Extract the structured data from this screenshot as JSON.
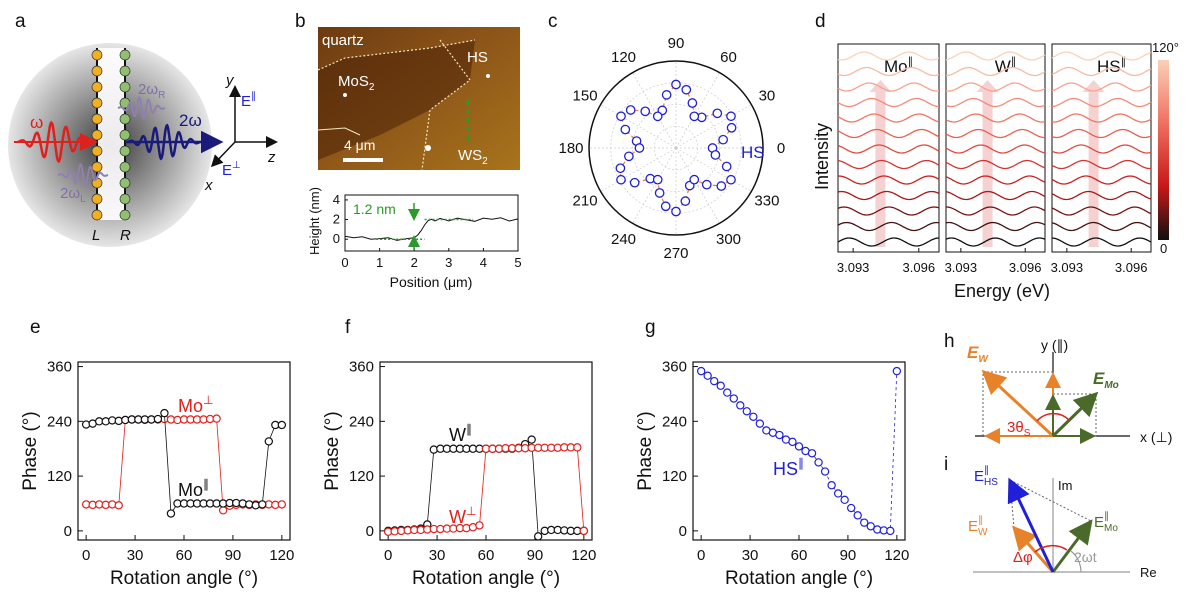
{
  "panels": {
    "a": {
      "letter": "a",
      "omega": "ω",
      "two_omega": "2ω",
      "omega_r": "2ω",
      "omega_r_sub": "R",
      "omega_l": "2ω",
      "omega_l_sub": "L",
      "layer_left": "L",
      "layer_right": "R",
      "axis_y": "y",
      "axis_z": "z",
      "axis_x": "x",
      "e_par": "E",
      "e_par_sup": "∥",
      "e_perp": "E",
      "e_perp_sup": "⊥"
    },
    "b": {
      "letter": "b",
      "quartz": "quartz",
      "mos2": "MoS",
      "mos2_sub": "2",
      "hs": "HS",
      "ws2": "WS",
      "ws2_sub": "2",
      "scale": "4 μm",
      "annotation": "1.2 nm",
      "ylabel": "Height (nm)",
      "xlabel": "Position (μm)",
      "xticks": [
        "0",
        "1",
        "2",
        "3",
        "4",
        "5"
      ],
      "yticks": [
        "0",
        "2",
        "4"
      ]
    },
    "c": {
      "letter": "c",
      "label": "HS",
      "angle_labels": [
        "0",
        "30",
        "60",
        "90",
        "120",
        "150",
        "180",
        "210",
        "240",
        "270",
        "300",
        "330"
      ]
    },
    "d": {
      "letter": "d",
      "titles": [
        "Mo",
        "W",
        "HS"
      ],
      "title_sup": "∥",
      "ylabel": "Intensity",
      "xlabel": "Energy (eV)",
      "xticks": [
        "3.093",
        "3.096"
      ],
      "colorbar_top": "120°",
      "colorbar_bottom": "0"
    },
    "h": {
      "letter": "h",
      "ew": "E",
      "ew_sub": "W",
      "emo": "E",
      "emo_sub": "Mo",
      "yaxis": "y (∥)",
      "xaxis": "x (⊥)",
      "angle": "3θ",
      "angle_sub": "S"
    },
    "i": {
      "letter": "i",
      "ehs": "E",
      "ehs_sub": "HS",
      "ew": "E",
      "ew_sub": "W",
      "emo": "E",
      "emo_sub": "Mo",
      "sup": "∥",
      "im": "Im",
      "re": "Re",
      "dphi": "Δφ",
      "wt": "2ωt"
    }
  },
  "colors": {
    "red": "#e0201c",
    "black": "#111111",
    "blue": "#2020d8",
    "orange": "#e8822a",
    "green": "#4a6a2a",
    "navy": "#1a1a7a",
    "afm_green": "#2a9a2a"
  },
  "chart_data": [
    {
      "type": "scatter",
      "id": "c",
      "title": "",
      "series": [
        {
          "name": "HS",
          "theta_deg": [
            0,
            10,
            20,
            30,
            40,
            50,
            60,
            70,
            80,
            90,
            100,
            110,
            120,
            130,
            140,
            150,
            160,
            170,
            180,
            190,
            200,
            210,
            220,
            230,
            240,
            250,
            260,
            270,
            280,
            290,
            300,
            310,
            320,
            330,
            340,
            350
          ],
          "r": [
            0.42,
            0.55,
            0.68,
            0.73,
            0.62,
            0.46,
            0.42,
            0.55,
            0.68,
            0.73,
            0.62,
            0.46,
            0.42,
            0.55,
            0.68,
            0.73,
            0.62,
            0.46,
            0.42,
            0.55,
            0.68,
            0.73,
            0.62,
            0.46,
            0.42,
            0.55,
            0.68,
            0.73,
            0.62,
            0.46,
            0.42,
            0.55,
            0.68,
            0.73,
            0.62,
            0.46
          ]
        }
      ]
    },
    {
      "type": "line",
      "id": "b",
      "xlabel": "Position (μm)",
      "ylabel": "Height (nm)",
      "xlim": [
        0,
        5
      ],
      "ylim": [
        -1.2,
        4.5
      ],
      "x": [
        0.0,
        0.25,
        0.5,
        0.75,
        1.0,
        1.25,
        1.5,
        1.75,
        2.0,
        2.1,
        2.2,
        2.3,
        2.4,
        2.5,
        2.6,
        2.75,
        3.0,
        3.25,
        3.5,
        3.75,
        4.0,
        4.25,
        4.5,
        4.75,
        5.0
      ],
      "y": [
        0.3,
        0.1,
        0.2,
        0.0,
        0.1,
        0.2,
        -0.1,
        0.0,
        0.1,
        0.4,
        0.9,
        1.5,
        1.9,
        2.0,
        1.8,
        2.1,
        1.9,
        2.2,
        2.0,
        1.8,
        2.1,
        2.0,
        2.2,
        1.9,
        2.1
      ]
    },
    {
      "type": "scatter",
      "id": "e",
      "xlabel": "Rotation angle (°)",
      "ylabel": "Phase (°)",
      "xlim": [
        -5,
        125
      ],
      "ylim": [
        -20,
        370
      ],
      "xticks": [
        0,
        30,
        60,
        90,
        120
      ],
      "yticks": [
        0,
        120,
        240,
        360
      ],
      "series_labels": [
        "Mo",
        "Mo"
      ],
      "series_sups": [
        "⊥",
        "∥"
      ],
      "series": [
        {
          "name": "Mo⊥",
          "x": [
            0,
            4,
            8,
            12,
            16,
            20,
            24,
            28,
            32,
            36,
            40,
            44,
            48,
            52,
            56,
            60,
            64,
            68,
            72,
            76,
            80,
            84,
            88,
            92,
            96,
            100,
            104,
            108,
            112,
            116,
            120
          ],
          "y": [
            58,
            57,
            58,
            57,
            58,
            56,
            243,
            244,
            244,
            243,
            244,
            244,
            245,
            244,
            243,
            244,
            244,
            244,
            244,
            245,
            246,
            45,
            55,
            57,
            58,
            57,
            58,
            57,
            58,
            57,
            58
          ]
        },
        {
          "name": "Mo∥",
          "x": [
            0,
            4,
            8,
            12,
            16,
            20,
            24,
            28,
            32,
            36,
            40,
            44,
            48,
            52,
            56,
            60,
            64,
            68,
            72,
            76,
            80,
            84,
            88,
            92,
            96,
            100,
            104,
            108,
            112,
            116,
            120
          ],
          "y": [
            233,
            235,
            240,
            240,
            242,
            241,
            243,
            244,
            244,
            244,
            244,
            245,
            258,
            38,
            60,
            60,
            60,
            60,
            60,
            60,
            60,
            60,
            61,
            61,
            60,
            58,
            56,
            58,
            196,
            232,
            232
          ]
        }
      ]
    },
    {
      "type": "scatter",
      "id": "f",
      "xlabel": "Rotation angle (°)",
      "ylabel": "Phase (°)",
      "xlim": [
        -5,
        125
      ],
      "ylim": [
        -20,
        370
      ],
      "xticks": [
        0,
        30,
        60,
        90,
        120
      ],
      "yticks": [
        0,
        120,
        240,
        360
      ],
      "series_labels": [
        "W",
        "W"
      ],
      "series_sups": [
        "∥",
        "⊥"
      ],
      "series": [
        {
          "name": "W∥",
          "x": [
            0,
            4,
            8,
            12,
            16,
            20,
            24,
            28,
            32,
            36,
            40,
            44,
            48,
            52,
            56,
            60,
            64,
            68,
            72,
            76,
            80,
            84,
            88,
            92,
            96,
            100,
            104,
            108,
            112,
            116,
            120
          ],
          "y": [
            0,
            1,
            2,
            2,
            3,
            5,
            14,
            178,
            180,
            180,
            180,
            180,
            180,
            180,
            180,
            180,
            180,
            180,
            180,
            180,
            182,
            190,
            200,
            -12,
            0,
            2,
            2,
            1,
            0,
            0,
            0
          ]
        },
        {
          "name": "W⊥",
          "x": [
            0,
            4,
            8,
            12,
            16,
            20,
            24,
            28,
            32,
            36,
            40,
            44,
            48,
            52,
            56,
            60,
            64,
            68,
            72,
            76,
            80,
            84,
            88,
            92,
            96,
            100,
            104,
            108,
            112,
            116,
            120
          ],
          "y": [
            -2,
            -1,
            0,
            1,
            2,
            2,
            3,
            4,
            4,
            5,
            5,
            6,
            6,
            8,
            12,
            180,
            180,
            180,
            181,
            181,
            181,
            181,
            182,
            182,
            182,
            182,
            182,
            183,
            183,
            183,
            0
          ]
        }
      ]
    },
    {
      "type": "scatter",
      "id": "g",
      "xlabel": "Rotation angle (°)",
      "ylabel": "Phase (°)",
      "xlim": [
        -5,
        125
      ],
      "ylim": [
        -20,
        370
      ],
      "xticks": [
        0,
        30,
        60,
        90,
        120
      ],
      "yticks": [
        0,
        120,
        240,
        360
      ],
      "series_labels": [
        "HS"
      ],
      "series_sups": [
        "∥"
      ],
      "series": [
        {
          "name": "HS∥",
          "x": [
            0,
            4,
            8,
            12,
            16,
            20,
            24,
            28,
            32,
            36,
            40,
            44,
            48,
            52,
            56,
            60,
            64,
            68,
            72,
            76,
            80,
            84,
            88,
            92,
            96,
            100,
            104,
            108,
            112,
            116,
            120
          ],
          "y": [
            350,
            340,
            328,
            318,
            303,
            290,
            275,
            262,
            250,
            235,
            220,
            215,
            210,
            200,
            195,
            185,
            175,
            170,
            150,
            130,
            100,
            82,
            68,
            50,
            34,
            18,
            10,
            3,
            1,
            0,
            350
          ]
        }
      ]
    }
  ]
}
